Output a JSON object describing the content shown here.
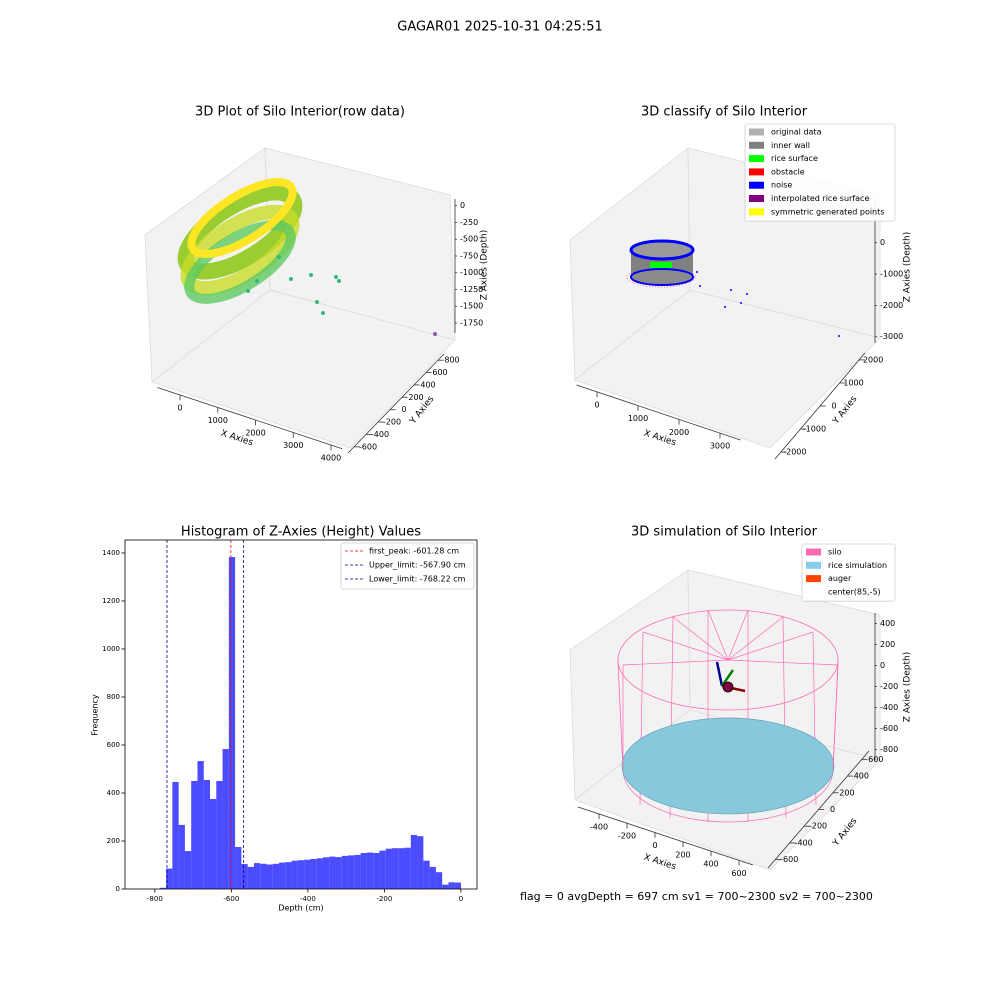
{
  "title": "GAGAR01 2025-10-31 04:25:51",
  "annotation": "flag = 0     avgDepth = 697 cm  sv1 = 700~2300  sv2 = 700~2300",
  "chart_data": [
    {
      "type": "scatter3d",
      "title": "3D Plot of Silo Interior(row data)",
      "xlabel": "X Axies",
      "ylabel": "Y Axies",
      "zlabel": "Z Axies (Depth)",
      "xlim": [
        -600,
        4300
      ],
      "xticks": [
        0,
        1000,
        2000,
        3000,
        4000
      ],
      "ylim": [
        -700,
        900
      ],
      "yticks": [
        -600,
        -400,
        -200,
        0,
        200,
        400,
        600,
        800
      ],
      "zlim": [
        -1900,
        100
      ],
      "zticks": [
        0,
        -250,
        -500,
        -750,
        -1000,
        -1250,
        -1500,
        -1750
      ]
    },
    {
      "type": "scatter3d",
      "title": "3D classify of Silo Interior",
      "xlabel": "X Axies",
      "ylabel": "Y Axies",
      "zlabel": "Z Axies (Depth)",
      "xlim": [
        -500,
        3500
      ],
      "xticks": [
        0,
        1000,
        2000,
        3000
      ],
      "ylim": [
        -2300,
        2300
      ],
      "yticks": [
        -2000,
        -1000,
        0,
        1000,
        2000
      ],
      "zlim": [
        -3200,
        1300
      ],
      "zticks": [
        0,
        -1000,
        -2000,
        -3000
      ],
      "legend": [
        {
          "name": "original data",
          "color": "#b0b0b0"
        },
        {
          "name": "inner wall",
          "color": "#808080"
        },
        {
          "name": "rice surface",
          "color": "#00ff00"
        },
        {
          "name": "obstacle",
          "color": "#ff0000"
        },
        {
          "name": "noise",
          "color": "#0000ff"
        },
        {
          "name": "interpolated rice surface",
          "color": "#800080"
        },
        {
          "name": "symmetric generated points",
          "color": "#ffff00"
        }
      ]
    },
    {
      "type": "histogram",
      "title": "Histogram of Z-Axies (Height) Values",
      "xlabel": "Depth (cm)",
      "ylabel": "Frequency",
      "color": "#0000ff",
      "alpha": 0.7,
      "bins": [
        -787,
        -770.6,
        -754.2,
        -737.8,
        -721.4,
        -705,
        -688.6,
        -672.2,
        -655.8,
        -639.4,
        -623,
        -606.6,
        -590.2,
        -573.8,
        -557.4,
        -541,
        -524.6,
        -508.2,
        -491.8,
        -475.4,
        -459,
        -442.6,
        -426.2,
        -409.8,
        -393.4,
        -377,
        -360.6,
        -344.2,
        -327.8,
        -311.4,
        -295,
        -278.6,
        -262.2,
        -245.8,
        -229.4,
        -213,
        -196.6,
        -180.2,
        -163.8,
        -147.4,
        -131,
        -114.6,
        -98.2,
        -81.8,
        -65.4,
        -49,
        -32.6,
        -16.2,
        0.2
      ],
      "values": [
        5,
        85,
        446,
        267,
        158,
        450,
        533,
        454,
        375,
        450,
        583,
        1383,
        175,
        104,
        92,
        108,
        105,
        102,
        105,
        110,
        112,
        118,
        120,
        122,
        125,
        128,
        132,
        135,
        133,
        138,
        140,
        142,
        150,
        152,
        150,
        160,
        168,
        170,
        170,
        172,
        225,
        220,
        118,
        92,
        70,
        18,
        28,
        27
      ],
      "xlim": [
        -878,
        42
      ],
      "xticks": [
        -800,
        -600,
        -400,
        -200,
        0
      ],
      "ylim": [
        0,
        1454
      ],
      "yticks": [
        0,
        200,
        400,
        600,
        800,
        1000,
        1200,
        1400
      ],
      "vlines": [
        {
          "name": "first_peak: -601.28 cm",
          "value": -601.28,
          "color": "#ff0000"
        },
        {
          "name": "Upper_limit: -567.90 cm",
          "value": -567.9,
          "color": "#00008b"
        },
        {
          "name": "Lower_limit: -768.22 cm",
          "value": -768.22,
          "color": "#00008b"
        }
      ]
    },
    {
      "type": "surface3d",
      "title": "3D simulation of Silo Interior",
      "xlabel": "X Axies",
      "ylabel": "Y Axies",
      "zlabel": "Z Axies (Depth)",
      "xlim": [
        -550,
        700
      ],
      "xticks": [
        -400,
        -200,
        0,
        200,
        400,
        600
      ],
      "ylim": [
        -700,
        700
      ],
      "yticks": [
        -600,
        -400,
        -200,
        0,
        200,
        400,
        600
      ],
      "zlim": [
        -900,
        500
      ],
      "zticks": [
        400,
        200,
        0,
        -200,
        -400,
        -600,
        -800
      ],
      "legend": [
        {
          "name": "silo",
          "color": "#ff69b4"
        },
        {
          "name": "rice simulation",
          "color": "#87ceeb"
        },
        {
          "name": "auger",
          "color": "#ff4500"
        },
        {
          "name": "center(85,-5)",
          "color": "#ffffff"
        }
      ]
    }
  ]
}
